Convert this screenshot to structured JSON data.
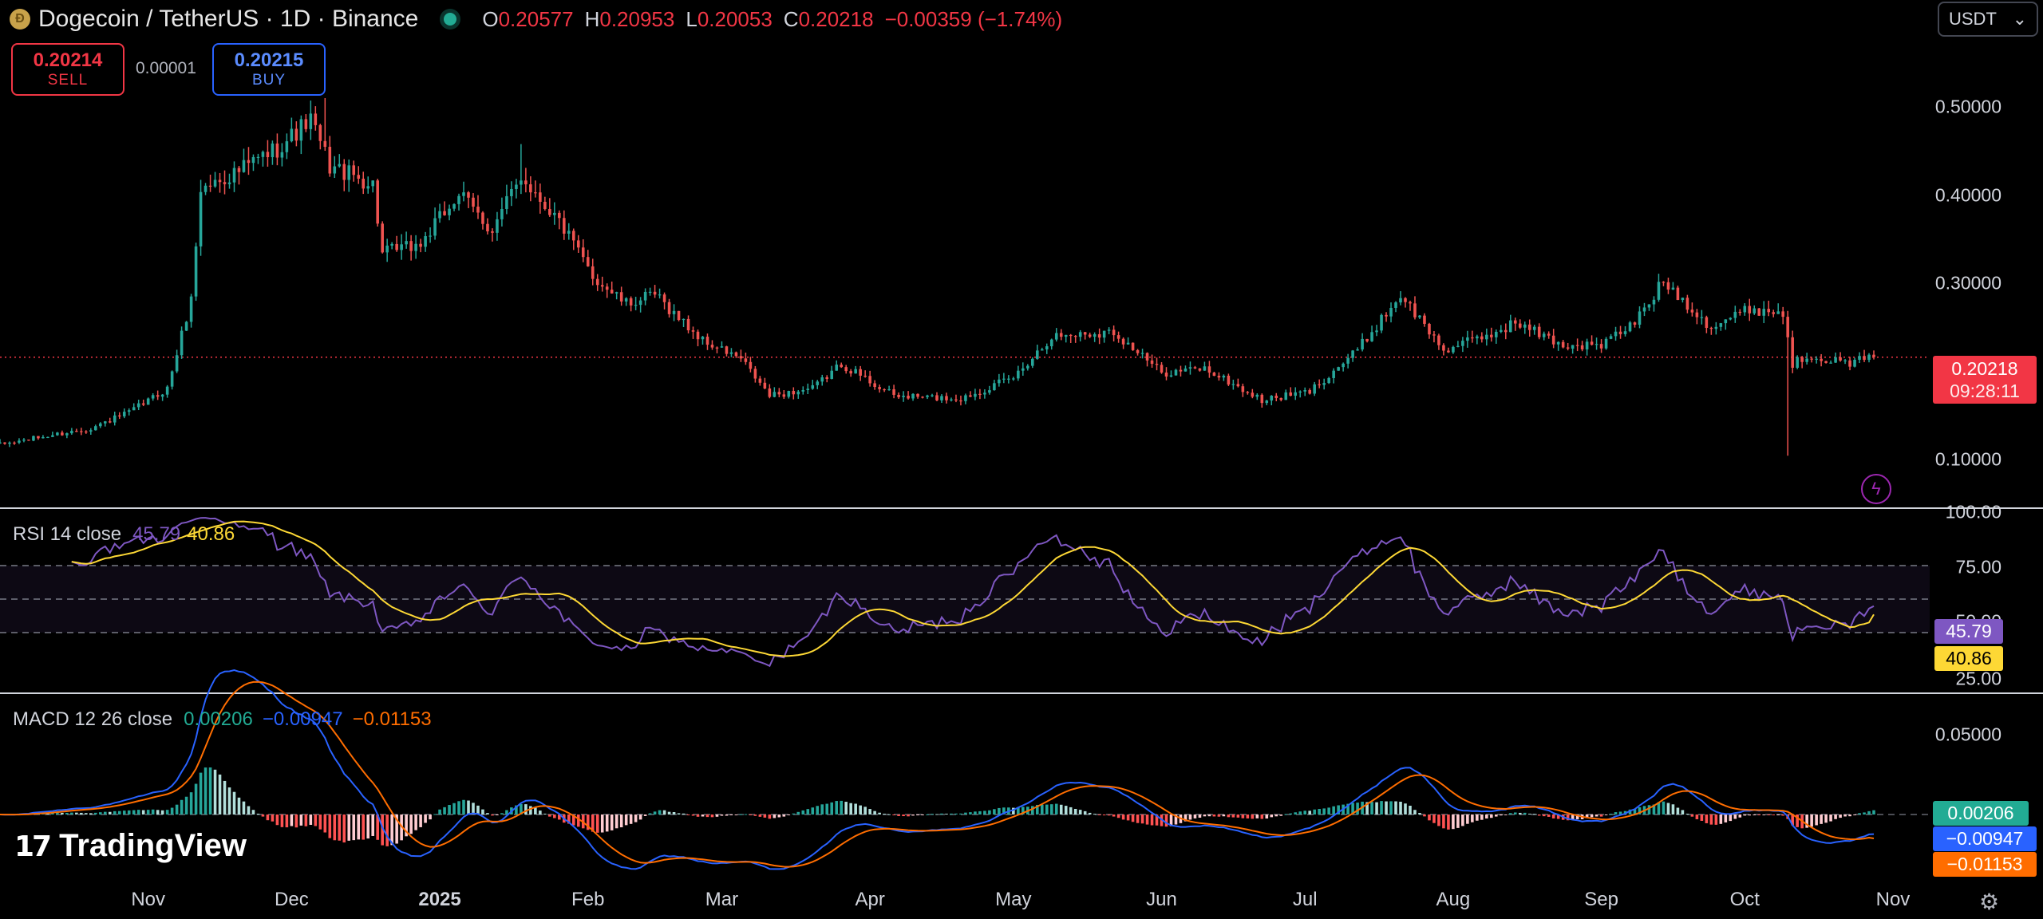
{
  "header": {
    "symbol_title": "Dogecoin / TetherUS · 1D · Binance",
    "ohlc": [
      {
        "label": "O",
        "value": "0.20577"
      },
      {
        "label": "H",
        "value": "0.20953"
      },
      {
        "label": "L",
        "value": "0.20053"
      },
      {
        "label": "C",
        "value": "0.20218"
      }
    ],
    "change": "−0.00359 (−1.74%)",
    "currency": "USDT"
  },
  "trade": {
    "sell_price": "0.20214",
    "sell_label": "SELL",
    "spread": "0.00001",
    "buy_price": "0.20215",
    "buy_label": "BUY"
  },
  "price_axis": {
    "labels": [
      "0.50000",
      "0.40000",
      "0.30000",
      "0.10000"
    ]
  },
  "last_price": {
    "price": "0.20218",
    "countdown": "09:28:11"
  },
  "rsi": {
    "label": "RSI 14 close",
    "value": "45.79",
    "ma_value": "40.86",
    "axis_labels": [
      "100.00",
      "75.00",
      "25.00"
    ],
    "hidden_label": "50.00"
  },
  "macd": {
    "label": "MACD 12 26 close",
    "histogram": "0.00206",
    "macd": "−0.00947",
    "signal": "−0.01153",
    "axis_labels": [
      "0.05000"
    ]
  },
  "time_axis": [
    "Nov",
    "Dec",
    "2025",
    "Feb",
    "Mar",
    "Apr",
    "May",
    "Jun",
    "Jul",
    "Aug",
    "Sep",
    "Oct",
    "Nov"
  ],
  "branding": "TradingView",
  "icons": {
    "coin": "dogecoin-logo",
    "alert": "lightning-bolt-icon",
    "settings": "gear-icon"
  },
  "colors": {
    "up": "#26a69a",
    "down": "#ef5350",
    "rsi": "#7e57c2",
    "rsi_ma": "#fdd835",
    "macd": "#2962ff",
    "signal": "#ff6d00"
  },
  "chart_data": {
    "type": "candlestick",
    "interval": "1D",
    "x_range": [
      "2024-10-01",
      "2025-10-28"
    ],
    "y_range": [
      0.07,
      0.53
    ],
    "anchor_closes": [
      [
        "2024-10-01",
        0.107
      ],
      [
        "2024-10-20",
        0.125
      ],
      [
        "2024-10-28",
        0.142
      ],
      [
        "2024-11-05",
        0.168
      ],
      [
        "2024-11-10",
        0.265
      ],
      [
        "2024-11-12",
        0.385
      ],
      [
        "2024-11-20",
        0.405
      ],
      [
        "2024-11-28",
        0.43
      ],
      [
        "2024-12-05",
        0.46
      ],
      [
        "2024-12-09",
        0.41
      ],
      [
        "2024-12-18",
        0.39
      ],
      [
        "2024-12-20",
        0.315
      ],
      [
        "2024-12-28",
        0.325
      ],
      [
        "2025-01-05",
        0.38
      ],
      [
        "2025-01-12",
        0.34
      ],
      [
        "2025-01-18",
        0.4
      ],
      [
        "2025-01-26",
        0.35
      ],
      [
        "2025-02-02",
        0.29
      ],
      [
        "2025-02-09",
        0.26
      ],
      [
        "2025-02-15",
        0.27
      ],
      [
        "2025-02-25",
        0.22
      ],
      [
        "2025-03-05",
        0.2
      ],
      [
        "2025-03-11",
        0.16
      ],
      [
        "2025-03-20",
        0.168
      ],
      [
        "2025-03-26",
        0.195
      ],
      [
        "2025-04-06",
        0.16
      ],
      [
        "2025-04-20",
        0.157
      ],
      [
        "2025-05-01",
        0.18
      ],
      [
        "2025-05-09",
        0.225
      ],
      [
        "2025-05-22",
        0.23
      ],
      [
        "2025-06-01",
        0.185
      ],
      [
        "2025-06-10",
        0.19
      ],
      [
        "2025-06-22",
        0.155
      ],
      [
        "2025-07-02",
        0.165
      ],
      [
        "2025-07-12",
        0.21
      ],
      [
        "2025-07-21",
        0.27
      ],
      [
        "2025-07-30",
        0.21
      ],
      [
        "2025-08-08",
        0.225
      ],
      [
        "2025-08-14",
        0.24
      ],
      [
        "2025-08-24",
        0.215
      ],
      [
        "2025-09-01",
        0.215
      ],
      [
        "2025-09-08",
        0.24
      ],
      [
        "2025-09-14",
        0.285
      ],
      [
        "2025-09-24",
        0.235
      ],
      [
        "2025-10-02",
        0.255
      ],
      [
        "2025-10-09",
        0.25
      ],
      [
        "2025-10-11",
        0.195
      ],
      [
        "2025-10-15",
        0.205
      ],
      [
        "2025-10-22",
        0.195
      ],
      [
        "2025-10-28",
        0.20218
      ]
    ],
    "wick_extremes": [
      [
        "2024-12-08",
        0.484
      ],
      [
        "2025-01-18",
        0.434
      ],
      [
        "2025-10-10",
        0.095
      ]
    ],
    "rsi": {
      "y_range": [
        0,
        100
      ],
      "bands": [
        30,
        50,
        70
      ],
      "last": 45.79,
      "ma_last": 40.86
    },
    "macd": {
      "params": [
        12,
        26
      ],
      "last_histogram": 0.00206,
      "last_macd": -0.00947,
      "last_signal": -0.01153
    }
  }
}
